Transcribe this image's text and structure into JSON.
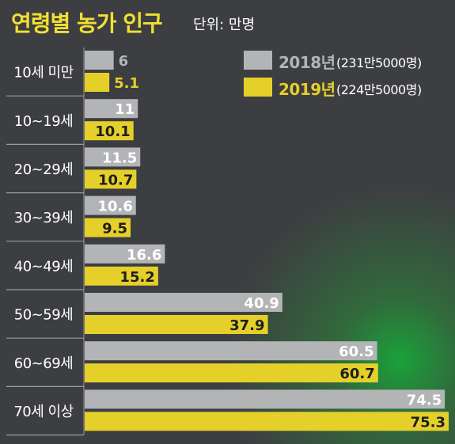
{
  "header": {
    "title": "연령별 농가 인구",
    "unit": "단위: 만명"
  },
  "colors": {
    "background": "#3d3e41",
    "glow": "#18a63a",
    "bar_2018": "#b3b4b6",
    "bar_2019": "#e5d02a",
    "title": "#f1e033",
    "divider": "#9a9b9d"
  },
  "chart_data": {
    "type": "bar",
    "orientation": "horizontal",
    "title": "연령별 농가 인구",
    "unit": "단위: 만명",
    "categories": [
      "10세 미만",
      "10~19세",
      "20~29세",
      "30~39세",
      "40~49세",
      "50~59세",
      "60~69세",
      "70세 이상"
    ],
    "series": [
      {
        "name": "2018년",
        "total": "(231만5000명)",
        "values": [
          6,
          11,
          11.5,
          10.6,
          16.6,
          40.9,
          60.5,
          74.5
        ]
      },
      {
        "name": "2019년",
        "total": "(224만5000명)",
        "values": [
          5.1,
          10.1,
          10.7,
          9.5,
          15.2,
          37.9,
          60.7,
          75.3
        ]
      }
    ],
    "value_labels": [
      [
        "6",
        "11",
        "11.5",
        "10.6",
        "16.6",
        "40.9",
        "60.5",
        "74.5"
      ],
      [
        "5.1",
        "10.1",
        "10.7",
        "9.5",
        "15.2",
        "37.9",
        "60.7",
        "75.3"
      ]
    ],
    "xlim": [
      0,
      75.3
    ],
    "legend": "top-right",
    "grid": false
  }
}
